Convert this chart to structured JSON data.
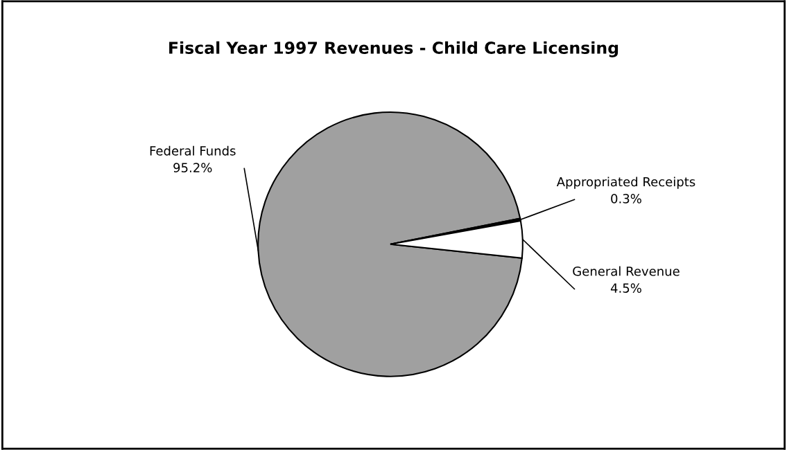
{
  "chart_data": {
    "type": "pie",
    "title": "Fiscal Year 1997 Revenues - Child Care Licensing",
    "categories": [
      "Federal Funds",
      "Appropriated Receipts",
      "General Revenue"
    ],
    "values": [
      95.2,
      0.3,
      4.5
    ],
    "value_labels": [
      "95.2%",
      "0.3%",
      "4.5%"
    ],
    "colors": [
      "#a0a0a0",
      "#000000",
      "#ffffff"
    ]
  }
}
